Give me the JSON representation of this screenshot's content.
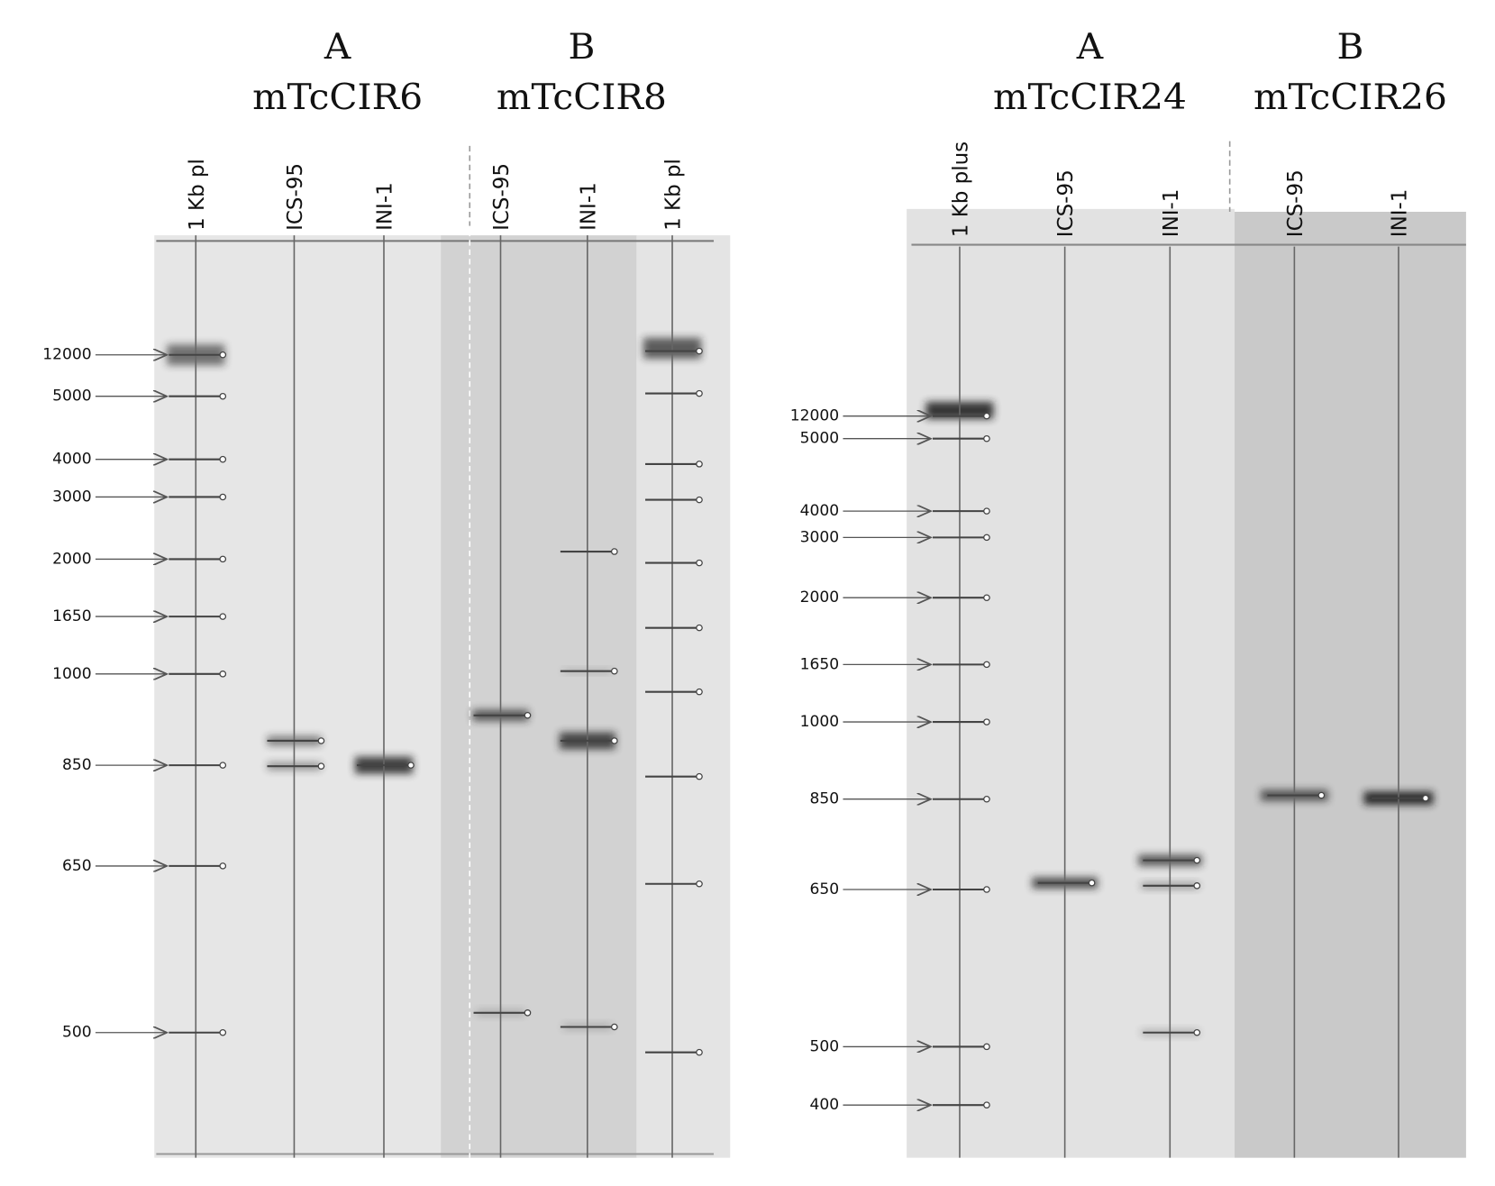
{
  "panels": [
    {
      "groups": [
        {
          "letter": "A",
          "marker": "mTcCIR6"
        },
        {
          "letter": "B",
          "marker": "mTcCIR8"
        }
      ],
      "lanes": [
        "1 Kb pl",
        "ICS-95",
        "INI-1",
        "ICS-95",
        "INI-1",
        "1 Kb pl"
      ],
      "ladder": [
        "12000",
        "5000",
        "4000",
        "3000",
        "2000",
        "1650",
        "1000",
        "850",
        "650",
        "500"
      ]
    },
    {
      "groups": [
        {
          "letter": "A",
          "marker": "mTcCIR24"
        },
        {
          "letter": "B",
          "marker": "mTcCIR26"
        }
      ],
      "lanes": [
        "1 Kb plus",
        "ICS-95",
        "INI-1",
        "ICS-95",
        "INI-1"
      ],
      "ladder": [
        "12000",
        "5000",
        "4000",
        "3000",
        "2000",
        "1650",
        "1000",
        "850",
        "650",
        "500",
        "400"
      ]
    }
  ]
}
